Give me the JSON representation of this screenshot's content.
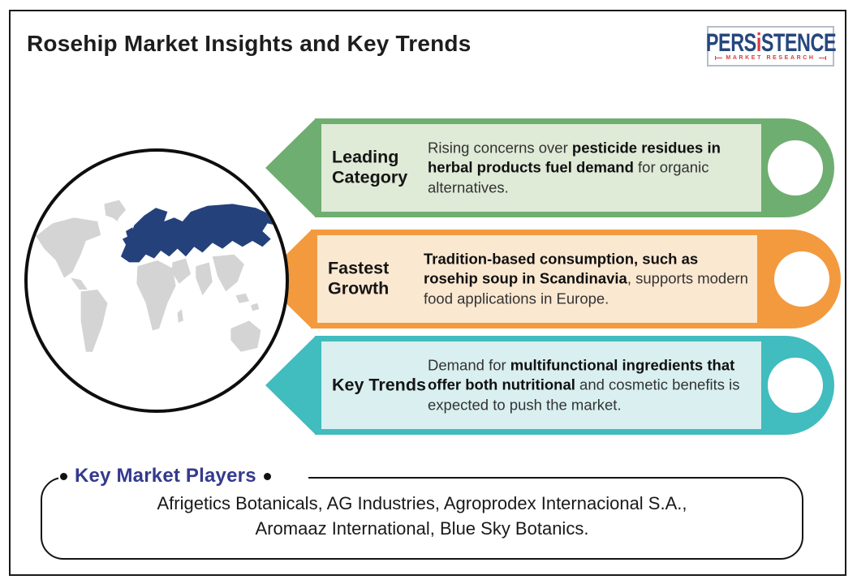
{
  "page": {
    "title": "Rosehip Market Insights and Key Trends"
  },
  "logo": {
    "brand_part1": "PERS",
    "brand_i": "i",
    "brand_part2": "STENCE",
    "subtitle": "MARKET RESEARCH",
    "navy": "#25477e",
    "red": "#d93a40"
  },
  "map": {
    "land_color": "#d4d4d4",
    "highlight_color": "#24417b",
    "highlighted_region": "Europe and Russia"
  },
  "banners": [
    {
      "label": "Leading Category",
      "border": "#6fae71",
      "fill": "#dfead7",
      "desc": [
        {
          "t": "Rising concerns over ",
          "b": false
        },
        {
          "t": "pesticide residues in herbal products fuel demand",
          "b": true
        },
        {
          "t": " for organic alternatives.",
          "b": false
        }
      ]
    },
    {
      "label": "Fastest Growth",
      "border": "#f39a3e",
      "fill": "#fbe8d1",
      "desc": [
        {
          "t": "Tradition-based consumption, such as rosehip soup in Scandinavia",
          "b": true
        },
        {
          "t": ", supports modern food applications in Europe.",
          "b": false
        }
      ]
    },
    {
      "label": "Key Trends",
      "border": "#41bcbf",
      "fill": "#d9eff0",
      "desc": [
        {
          "t": "Demand for ",
          "b": false
        },
        {
          "t": "multifunctional ingredients that offer both nutritional",
          "b": true
        },
        {
          "t": " and cosmetic benefits is expected to push the market.",
          "b": false
        }
      ]
    }
  ],
  "key_players": {
    "heading": "Key Market Players",
    "heading_color": "#333a8d",
    "lines": [
      "Afrigetics Botanicals, AG Industries, Agroprodex Internacional S.A.,",
      "Aromaaz International, Blue Sky Botanics."
    ]
  },
  "icons": {
    "heading_bullets": "black-dot",
    "banner_hole": "white-circle",
    "map": "world-map-globe"
  }
}
